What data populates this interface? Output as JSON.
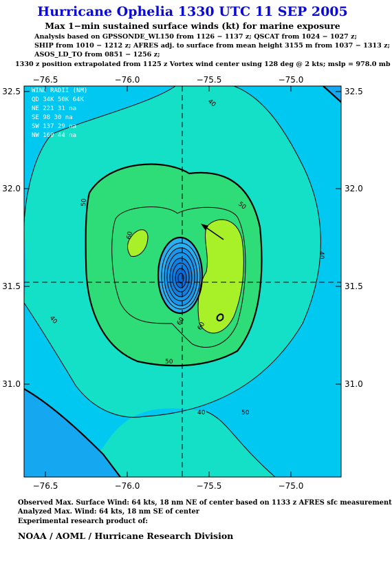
{
  "title": "Hurricane Ophelia 1330 UTC 11 SEP 2005",
  "subtitle": "Max 1−min sustained surface winds (kt) for marine exposure",
  "analysis_lines": [
    "Analysis based on  GPSSONDE_WL150 from 1126 − 1137 z;  QSCAT from 1024 − 1027 z;",
    "SHIP from 1010 − 1212 z;  AFRES adj. to surface from mean height 3155 m from 1037 − 1313 z;",
    "ASOS_LD_TO from 0851 − 1256 z;",
    "1330 z position extrapolated from 1125 z Vortex wind center using 128 deg @ 2 kts; mslp = 978.0 mb"
  ],
  "axes": {
    "x_ticks": [
      "−76.5",
      "−76.0",
      "−75.5",
      "−75.0"
    ],
    "y_ticks": [
      "32.5",
      "32.0",
      "31.5",
      "31.0"
    ]
  },
  "wind_radii": {
    "title": "WIND RADII (NM)",
    "header": "QD 34K 50K 64K",
    "rows": [
      "NE 221  31   na",
      "SE  98  30   na",
      "SW 137  29   na",
      "NW 169  44   na"
    ]
  },
  "contour_labels": [
    "40",
    "40",
    "40",
    "40",
    "50",
    "50",
    "50",
    "50",
    "60",
    "60"
  ],
  "colors": {
    "level_30_40": "#00c8f0",
    "level_40_50": "#14e0c8",
    "level_50_60": "#2edc78",
    "level_60_64": "#a8f028",
    "core_dark": "#0a6cd8",
    "core_light": "#55c4ff",
    "title_blue": "#0a0ad8"
  },
  "footer": {
    "observed": "Observed Max. Surface Wind: 64 kts, 18 nm NE of center based on 1133 z AFRES sfc measurement",
    "analyzed": "Analyzed Max. Wind: 64 kts, 18 nm SE of center",
    "experimental": "Experimental research product of:",
    "credit": "NOAA / AOML / Hurricane Research Division"
  }
}
